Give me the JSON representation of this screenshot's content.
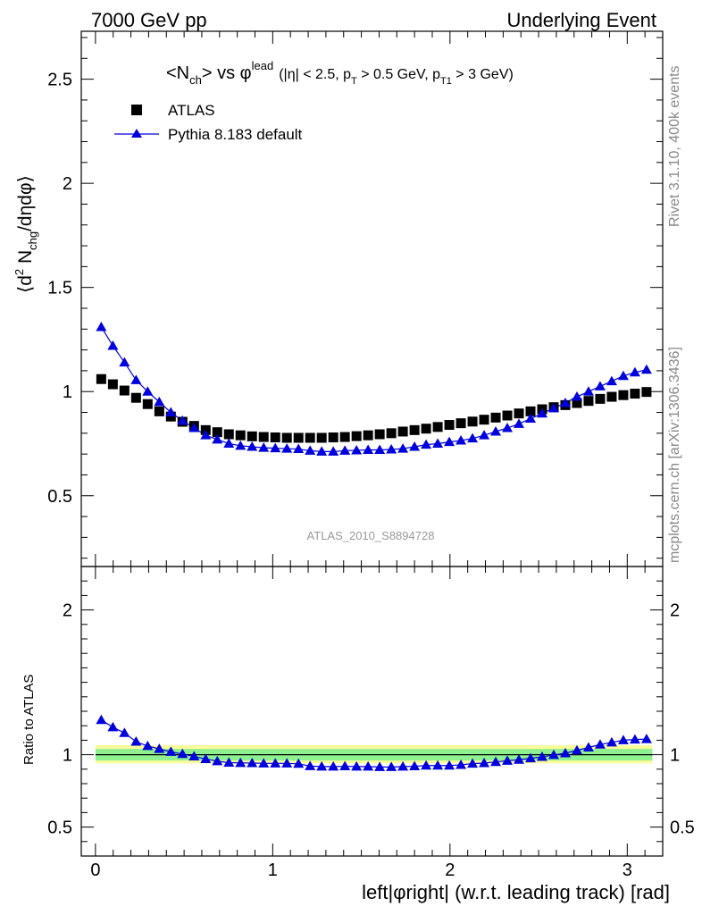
{
  "header": {
    "left": "7000 GeV pp",
    "right": "Underlying Event"
  },
  "side": {
    "rivet": "Rivet 3.1.10,  400k events",
    "mcplots": "mcplots.cern.ch [arXiv:1306.3436]"
  },
  "chart_data": [
    {
      "type": "scatter",
      "panel": "main",
      "title_parts": {
        "nch_open": "<N",
        "nch_sub": "ch",
        "vs": "> vs ",
        "phi": "φ",
        "lead_sup": "lead",
        "cut_eta": "(|η| < 2.5, p",
        "pt_sub": "T",
        "cut_pt": " > 0.5 GeV, p",
        "pt1_sub": "T1",
        "cut_pt1": " > 3 GeV)"
      },
      "ylabel": "⟨d² N_chg/dηdφ⟩",
      "ylabel_parts": {
        "a": "⟨d",
        "sq": "2",
        "b": " N",
        "chg": "chg",
        "c": "/dηdφ⟩"
      },
      "watermark": "ATLAS_2010_S8894728",
      "xlim": [
        -0.08,
        3.2
      ],
      "ylim": [
        0.16,
        2.73
      ],
      "yticks": [
        0.5,
        1,
        1.5,
        2,
        2.5
      ],
      "ytick_labels": [
        "0.5",
        "1",
        "1.5",
        "2",
        "2.5"
      ],
      "legend": {
        "position": "top-left",
        "entries": [
          "ATLAS",
          "Pythia 8.183 default"
        ]
      },
      "x": [
        0.0327,
        0.0982,
        0.1636,
        0.2291,
        0.2945,
        0.36,
        0.4254,
        0.4909,
        0.5563,
        0.6218,
        0.6872,
        0.7527,
        0.8181,
        0.8836,
        0.949,
        1.0145,
        1.0799,
        1.1454,
        1.2108,
        1.2763,
        1.3417,
        1.4072,
        1.4726,
        1.5381,
        1.6035,
        1.669,
        1.7344,
        1.7999,
        1.8653,
        1.9308,
        1.9962,
        2.0617,
        2.1271,
        2.1926,
        2.258,
        2.3235,
        2.3889,
        2.4544,
        2.5198,
        2.5853,
        2.6507,
        2.7162,
        2.7816,
        2.8471,
        2.9125,
        2.978,
        3.0434,
        3.1089
      ],
      "series": [
        {
          "name": "ATLAS",
          "color": "#000000",
          "marker": "square",
          "values": [
            1.06,
            1.035,
            1.005,
            0.97,
            0.94,
            0.905,
            0.88,
            0.855,
            0.835,
            0.815,
            0.805,
            0.795,
            0.79,
            0.785,
            0.782,
            0.78,
            0.778,
            0.778,
            0.778,
            0.778,
            0.78,
            0.782,
            0.786,
            0.79,
            0.795,
            0.8,
            0.808,
            0.815,
            0.822,
            0.83,
            0.84,
            0.848,
            0.856,
            0.865,
            0.875,
            0.885,
            0.895,
            0.905,
            0.915,
            0.925,
            0.935,
            0.945,
            0.955,
            0.965,
            0.975,
            0.983,
            0.99,
            0.998
          ]
        },
        {
          "name": "Pythia 8.183 default",
          "color": "#0000dd",
          "marker": "triangle",
          "values": [
            1.31,
            1.22,
            1.14,
            1.055,
            1.0,
            0.95,
            0.9,
            0.86,
            0.825,
            0.79,
            0.77,
            0.75,
            0.74,
            0.735,
            0.73,
            0.728,
            0.726,
            0.724,
            0.716,
            0.712,
            0.712,
            0.716,
            0.718,
            0.72,
            0.72,
            0.722,
            0.726,
            0.735,
            0.745,
            0.75,
            0.758,
            0.765,
            0.775,
            0.79,
            0.808,
            0.825,
            0.845,
            0.87,
            0.895,
            0.92,
            0.945,
            0.975,
            1.0,
            1.025,
            1.05,
            1.075,
            1.092,
            1.105
          ]
        }
      ]
    },
    {
      "type": "scatter",
      "panel": "ratio",
      "ylabel": "Ratio to ATLAS",
      "xlabel": "left|φright| (w.r.t. leading track) [rad]",
      "xlim": [
        -0.08,
        3.2
      ],
      "ylim": [
        0.3,
        2.3
      ],
      "xticks": [
        0,
        1,
        2,
        3
      ],
      "xtick_labels": [
        "0",
        "1",
        "2",
        "3"
      ],
      "yticks": [
        0.5,
        1,
        2
      ],
      "ytick_labels": [
        "0.5",
        "1",
        "2"
      ],
      "right_tick_labels": [
        "0.5",
        "1",
        "2"
      ],
      "band_inner": [
        0.96,
        1.04
      ],
      "band_outer": [
        0.94,
        1.065
      ],
      "band_colors": {
        "inner": "#8ef08e",
        "outer": "#fcfc9a"
      },
      "reference_line": 1,
      "series": [
        {
          "name": "Pythia 8.183 default",
          "color": "#0000dd",
          "marker": "triangle",
          "values": [
            1.24,
            1.19,
            1.15,
            1.09,
            1.06,
            1.04,
            1.02,
            1.005,
            0.988,
            0.97,
            0.955,
            0.945,
            0.943,
            0.942,
            0.94,
            0.94,
            0.94,
            0.937,
            0.921,
            0.918,
            0.918,
            0.92,
            0.918,
            0.918,
            0.915,
            0.915,
            0.918,
            0.92,
            0.925,
            0.925,
            0.925,
            0.93,
            0.938,
            0.942,
            0.95,
            0.958,
            0.965,
            0.975,
            0.985,
            0.998,
            1.01,
            1.03,
            1.05,
            1.07,
            1.085,
            1.1,
            1.105,
            1.108
          ]
        }
      ]
    }
  ]
}
